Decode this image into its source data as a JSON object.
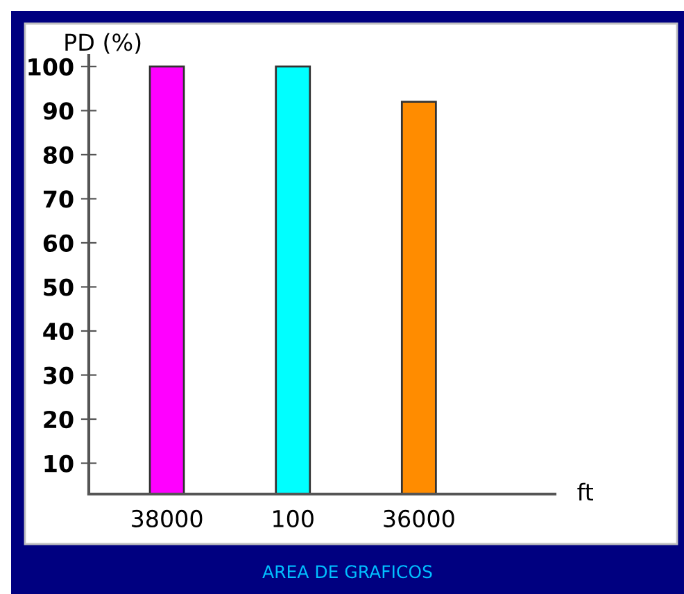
{
  "chart_data": {
    "type": "bar",
    "xlabel": "ft",
    "ylabel": "PD (%)",
    "categories": [
      "38000",
      "100",
      "36000"
    ],
    "values": [
      100,
      100,
      92
    ],
    "colors": [
      "#ff00ff",
      "#00ffff",
      "#ff8c00"
    ],
    "ylim": [
      3,
      102.5
    ],
    "yticks": [
      10,
      20,
      30,
      40,
      50,
      60,
      70,
      80,
      90,
      100
    ],
    "grid": false,
    "legend": false,
    "annotations": [
      "AREA DE GRAFICOS"
    ]
  }
}
